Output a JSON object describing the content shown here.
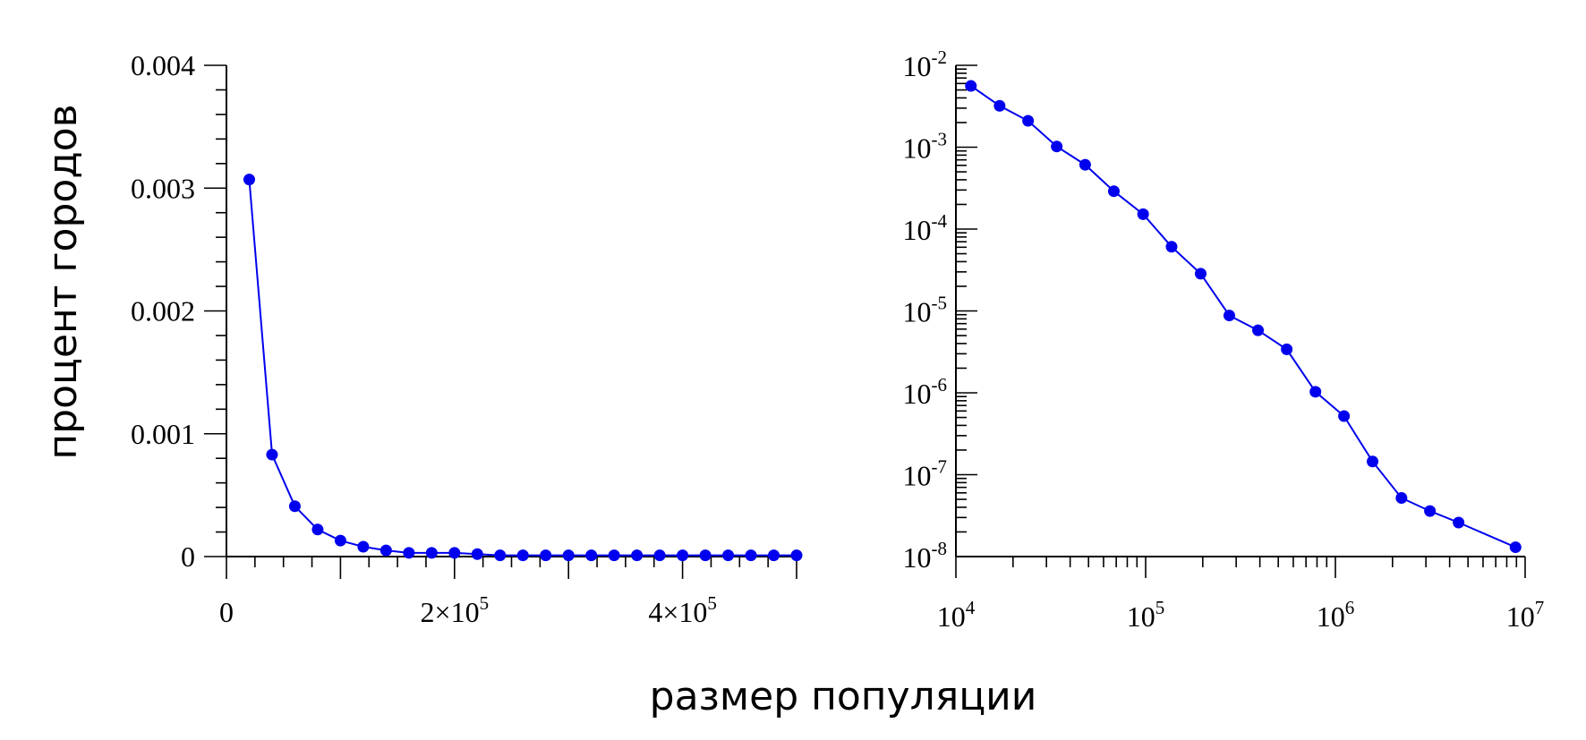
{
  "axis_titles": {
    "y": "процент городов",
    "x": "размер популяции"
  },
  "colors": {
    "series": "#0000ee",
    "axes": "#000000",
    "background": "#ffffff"
  },
  "chart_data": [
    {
      "type": "line",
      "scale": "linear",
      "xlabel": "размер популяции",
      "ylabel": "процент городов",
      "xlim": [
        0,
        500000
      ],
      "ylim": [
        0,
        0.004
      ],
      "x_ticks": [
        {
          "value": 0,
          "mantissa": "0",
          "exp": ""
        },
        {
          "value": 200000,
          "mantissa": "2×10",
          "exp": "5"
        },
        {
          "value": 400000,
          "mantissa": "4×10",
          "exp": "5"
        }
      ],
      "y_ticks": [
        {
          "value": 0,
          "label": "0"
        },
        {
          "value": 0.001,
          "label": "0.001"
        },
        {
          "value": 0.002,
          "label": "0.002"
        },
        {
          "value": 0.003,
          "label": "0.003"
        },
        {
          "value": 0.004,
          "label": "0.004"
        }
      ],
      "series": [
        {
          "x": [
            20000,
            40000,
            60000,
            80000,
            100000,
            120000,
            140000,
            160000,
            180000,
            200000,
            220000,
            240000,
            260000,
            280000,
            300000,
            320000,
            340000,
            360000,
            380000,
            400000,
            420000,
            440000,
            460000,
            480000,
            500000
          ],
          "y": [
            0.00307,
            0.00083,
            0.00041,
            0.00022,
            0.00013,
            8e-05,
            5e-05,
            3e-05,
            3e-05,
            3e-05,
            2e-05,
            1e-05,
            1e-05,
            1e-05,
            1e-05,
            1e-05,
            1e-05,
            1e-05,
            1e-05,
            1e-05,
            1e-05,
            1e-05,
            1e-05,
            1e-05,
            1e-05
          ]
        }
      ]
    },
    {
      "type": "line",
      "scale": "log-log",
      "xlabel": "размер популяции",
      "ylabel": "процент городов",
      "xlim": [
        10000,
        10000000
      ],
      "ylim": [
        1e-08,
        0.01
      ],
      "x_ticks": [
        {
          "value": 10000,
          "mantissa": "10",
          "exp": "4"
        },
        {
          "value": 100000,
          "mantissa": "10",
          "exp": "5"
        },
        {
          "value": 1000000,
          "mantissa": "10",
          "exp": "6"
        },
        {
          "value": 10000000,
          "mantissa": "10",
          "exp": "7"
        }
      ],
      "y_ticks": [
        {
          "value": 0.01,
          "mantissa": "10",
          "exp": "-2"
        },
        {
          "value": 0.001,
          "mantissa": "10",
          "exp": "-3"
        },
        {
          "value": 0.0001,
          "mantissa": "10",
          "exp": "-4"
        },
        {
          "value": 1e-05,
          "mantissa": "10",
          "exp": "-5"
        },
        {
          "value": 1e-06,
          "mantissa": "10",
          "exp": "-6"
        },
        {
          "value": 1e-07,
          "mantissa": "10",
          "exp": "-7"
        },
        {
          "value": 1e-08,
          "mantissa": "10",
          "exp": "-8"
        }
      ],
      "series": [
        {
          "x": [
            12000,
            17000,
            24000,
            34000,
            48000,
            68000,
            97000,
            137000,
            195000,
            276000,
            391000,
            554000,
            785000,
            1110000,
            1570000,
            2230000,
            3150000,
            4460000,
            8900000
          ],
          "y": [
            0.0056,
            0.0032,
            0.0021,
            0.00102,
            0.00061,
            0.00029,
            0.000152,
            6.08e-05,
            2.85e-05,
            8.8e-06,
            5.8e-06,
            3.4e-06,
            1.03e-06,
            5.2e-07,
            1.45e-07,
            5.2e-08,
            3.6e-08,
            2.6e-08,
            1.3e-08
          ]
        }
      ]
    }
  ]
}
